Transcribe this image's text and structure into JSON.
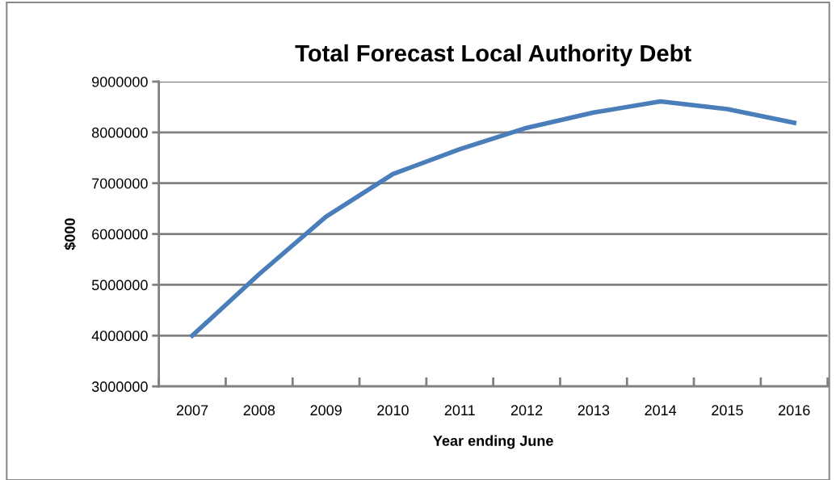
{
  "chart_data": {
    "type": "line",
    "title": "Total Forecast Local Authority Debt",
    "xlabel": "Year ending June",
    "ylabel": "$000",
    "categories": [
      "2007",
      "2008",
      "2009",
      "2010",
      "2011",
      "2012",
      "2013",
      "2014",
      "2015",
      "2016"
    ],
    "series": [
      {
        "color": "#4a7ebb",
        "values": [
          4000000,
          5210000,
          6340000,
          7180000,
          7670000,
          8090000,
          8390000,
          8610000,
          8460000,
          8190000
        ]
      }
    ],
    "ylim": [
      3000000,
      9000000
    ],
    "yticks": [
      3000000,
      4000000,
      5000000,
      6000000,
      7000000,
      8000000,
      9000000
    ],
    "grid": "y",
    "legend": false,
    "marker": "none",
    "line_style": "solid"
  }
}
